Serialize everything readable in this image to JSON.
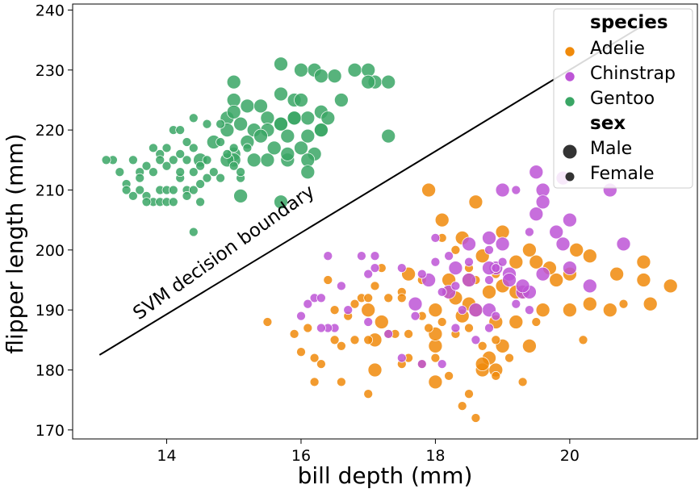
{
  "chart_data": {
    "type": "scatter",
    "title": "",
    "xlabel": "bill depth (mm)",
    "ylabel": "flipper length (mm)",
    "xlim": [
      12.6,
      21.9
    ],
    "ylim": [
      168.5,
      241
    ],
    "xticks": [
      14,
      16,
      18,
      20
    ],
    "yticks": [
      170,
      180,
      190,
      200,
      210,
      220,
      230,
      240
    ],
    "grid": false,
    "legend_position": "top-right",
    "legend": {
      "species_title": "species",
      "sex_title": "sex",
      "species": [
        {
          "name": "Adelie",
          "color": "#f08a0a"
        },
        {
          "name": "Chinstrap",
          "color": "#bd55d6"
        },
        {
          "name": "Gentoo",
          "color": "#3aa665"
        }
      ],
      "sex": [
        {
          "name": "Male"
        },
        {
          "name": "Female"
        }
      ]
    },
    "annotation": {
      "text": "SVM decision boundary"
    },
    "decision_boundary": {
      "x": [
        13.0,
        21.1
      ],
      "y": [
        182.5,
        237.5
      ]
    },
    "series": [
      {
        "name": "Adelie",
        "color": "#f08a0a",
        "male": [
          [
            17.9,
            210
          ],
          [
            18.1,
            205
          ],
          [
            18.6,
            208
          ],
          [
            19.0,
            203
          ],
          [
            18.4,
            202
          ],
          [
            18.7,
            199
          ],
          [
            19.2,
            198
          ],
          [
            19.5,
            198
          ],
          [
            19.7,
            197
          ],
          [
            19.4,
            200
          ],
          [
            20.1,
            200
          ],
          [
            20.3,
            199
          ],
          [
            20.7,
            196
          ],
          [
            21.1,
            195
          ],
          [
            21.1,
            198
          ],
          [
            21.5,
            194
          ],
          [
            21.2,
            191
          ],
          [
            20.6,
            190
          ],
          [
            20.3,
            191
          ],
          [
            20.0,
            190
          ],
          [
            19.6,
            190
          ],
          [
            19.3,
            193
          ],
          [
            19.0,
            194
          ],
          [
            18.8,
            193
          ],
          [
            18.5,
            191
          ],
          [
            18.2,
            193
          ],
          [
            18.0,
            190
          ],
          [
            18.4,
            189
          ],
          [
            18.9,
            188
          ],
          [
            19.2,
            188
          ],
          [
            19.4,
            184
          ],
          [
            19.0,
            184
          ],
          [
            18.8,
            182
          ],
          [
            18.7,
            180
          ],
          [
            18.9,
            180
          ],
          [
            18.7,
            181
          ],
          [
            18.0,
            184
          ],
          [
            18.0,
            186
          ],
          [
            18.0,
            178
          ],
          [
            17.1,
            185
          ],
          [
            17.1,
            180
          ],
          [
            17.0,
            190
          ],
          [
            17.2,
            188
          ],
          [
            17.6,
            196
          ],
          [
            18.2,
            195
          ],
          [
            18.5,
            195
          ],
          [
            18.3,
            192
          ],
          [
            18.6,
            190
          ],
          [
            19.2,
            193
          ],
          [
            19.8,
            195
          ],
          [
            20.0,
            196
          ]
        ],
        "female": [
          [
            18.1,
            202
          ],
          [
            18.3,
            200
          ],
          [
            18.5,
            197
          ],
          [
            18.6,
            195
          ],
          [
            18.9,
            196
          ],
          [
            17.8,
            195
          ],
          [
            17.5,
            193
          ],
          [
            17.3,
            192
          ],
          [
            17.1,
            194
          ],
          [
            17.2,
            197
          ],
          [
            16.9,
            192
          ],
          [
            16.8,
            191
          ],
          [
            16.5,
            190
          ],
          [
            16.7,
            189
          ],
          [
            17.3,
            186
          ],
          [
            17.0,
            185
          ],
          [
            16.8,
            185
          ],
          [
            16.5,
            185
          ],
          [
            16.6,
            184
          ],
          [
            16.3,
            181
          ],
          [
            16.2,
            178
          ],
          [
            16.6,
            178
          ],
          [
            17.0,
            176
          ],
          [
            16.0,
            183
          ],
          [
            15.9,
            186
          ],
          [
            16.1,
            187
          ],
          [
            15.5,
            188
          ],
          [
            17.5,
            181
          ],
          [
            17.8,
            181
          ],
          [
            18.0,
            182
          ],
          [
            18.2,
            179
          ],
          [
            18.4,
            174
          ],
          [
            18.6,
            172
          ],
          [
            18.5,
            176
          ],
          [
            18.7,
            184
          ],
          [
            18.9,
            185
          ],
          [
            19.1,
            182
          ],
          [
            19.3,
            178
          ],
          [
            17.5,
            192
          ],
          [
            17.8,
            189
          ],
          [
            17.9,
            187
          ],
          [
            17.6,
            186
          ],
          [
            17.4,
            186
          ],
          [
            18.1,
            188
          ],
          [
            18.3,
            186
          ],
          [
            18.5,
            187
          ],
          [
            17.0,
            192
          ],
          [
            16.4,
            195
          ],
          [
            16.2,
            182
          ],
          [
            17.6,
            182
          ],
          [
            18.9,
            179
          ],
          [
            19.5,
            188
          ],
          [
            20.2,
            185
          ],
          [
            20.8,
            191
          ]
        ]
      },
      {
        "name": "Chinstrap",
        "color": "#bd55d6",
        "male": [
          [
            19.5,
            213
          ],
          [
            19.6,
            210
          ],
          [
            19.9,
            212
          ],
          [
            20.0,
            205
          ],
          [
            19.8,
            203
          ],
          [
            19.9,
            201
          ],
          [
            20.0,
            197
          ],
          [
            20.8,
            201
          ],
          [
            20.6,
            210
          ],
          [
            19.5,
            206
          ],
          [
            19.0,
            210
          ],
          [
            18.5,
            201
          ],
          [
            18.8,
            202
          ],
          [
            19.0,
            201
          ],
          [
            18.9,
            197
          ],
          [
            18.8,
            197
          ],
          [
            19.1,
            196
          ],
          [
            19.3,
            193
          ],
          [
            19.6,
            196
          ],
          [
            19.4,
            193
          ],
          [
            18.8,
            190
          ],
          [
            18.6,
            190
          ],
          [
            18.5,
            195
          ],
          [
            18.2,
            193
          ],
          [
            17.7,
            191
          ],
          [
            18.3,
            197
          ],
          [
            17.9,
            195
          ],
          [
            19.3,
            194
          ],
          [
            19.6,
            208
          ],
          [
            19.1,
            195
          ],
          [
            20.3,
            194
          ]
        ],
        "female": [
          [
            19.2,
            210
          ],
          [
            19.4,
            203
          ],
          [
            18.9,
            197
          ],
          [
            18.8,
            200
          ],
          [
            18.5,
            198
          ],
          [
            18.3,
            194
          ],
          [
            18.1,
            193
          ],
          [
            18.0,
            198
          ],
          [
            17.8,
            196
          ],
          [
            17.5,
            197
          ],
          [
            17.1,
            197
          ],
          [
            16.9,
            199
          ],
          [
            16.4,
            199
          ],
          [
            16.6,
            194
          ],
          [
            16.2,
            192
          ],
          [
            16.1,
            191
          ],
          [
            16.0,
            189
          ],
          [
            16.5,
            187
          ],
          [
            16.4,
            187
          ],
          [
            16.7,
            190
          ],
          [
            17.0,
            196
          ],
          [
            17.3,
            186
          ],
          [
            17.5,
            182
          ],
          [
            17.8,
            181
          ],
          [
            18.1,
            181
          ],
          [
            18.3,
            187
          ],
          [
            18.6,
            185
          ],
          [
            18.8,
            187
          ],
          [
            19.2,
            191
          ],
          [
            18.8,
            195
          ],
          [
            18.2,
            199
          ],
          [
            18.0,
            202
          ],
          [
            17.7,
            189
          ],
          [
            16.3,
            187
          ],
          [
            18.9,
            189
          ],
          [
            19.4,
            190
          ],
          [
            18.4,
            190
          ],
          [
            17.0,
            188
          ],
          [
            16.3,
            192
          ],
          [
            19.0,
            198
          ],
          [
            17.1,
            199
          ]
        ]
      },
      {
        "name": "Gentoo",
        "color": "#3aa665",
        "male": [
          [
            15.7,
            231
          ],
          [
            16.0,
            230
          ],
          [
            16.2,
            230
          ],
          [
            16.3,
            229
          ],
          [
            16.5,
            229
          ],
          [
            16.8,
            230
          ],
          [
            17.0,
            230
          ],
          [
            17.1,
            228
          ],
          [
            17.3,
            228
          ],
          [
            17.0,
            228
          ],
          [
            15.0,
            228
          ],
          [
            15.0,
            225
          ],
          [
            15.2,
            224
          ],
          [
            15.4,
            224
          ],
          [
            15.5,
            222
          ],
          [
            15.7,
            226
          ],
          [
            15.9,
            225
          ],
          [
            16.0,
            225
          ],
          [
            16.3,
            223
          ],
          [
            16.4,
            222
          ],
          [
            16.6,
            225
          ],
          [
            16.1,
            222
          ],
          [
            15.9,
            222
          ],
          [
            15.7,
            221
          ],
          [
            15.5,
            220
          ],
          [
            15.3,
            220
          ],
          [
            15.1,
            221
          ],
          [
            14.9,
            222
          ],
          [
            14.9,
            220
          ],
          [
            15.2,
            218
          ],
          [
            15.4,
            219
          ],
          [
            15.8,
            219
          ],
          [
            16.0,
            217
          ],
          [
            16.2,
            216
          ],
          [
            16.3,
            220
          ],
          [
            16.3,
            220
          ],
          [
            16.1,
            215
          ],
          [
            16.1,
            213
          ],
          [
            15.8,
            215
          ],
          [
            15.8,
            216
          ],
          [
            15.6,
            217
          ],
          [
            15.3,
            215
          ],
          [
            15.0,
            216
          ],
          [
            15.0,
            215
          ],
          [
            15.0,
            223
          ],
          [
            14.5,
            215
          ],
          [
            14.9,
            215
          ],
          [
            15.1,
            209
          ],
          [
            15.7,
            208
          ],
          [
            17.3,
            219
          ],
          [
            16.1,
            219
          ],
          [
            15.9,
            222
          ],
          [
            14.7,
            218
          ],
          [
            15.7,
            221
          ],
          [
            15.5,
            215
          ]
        ],
        "female": [
          [
            14.1,
            220
          ],
          [
            14.2,
            220
          ],
          [
            14.3,
            218
          ],
          [
            14.4,
            217
          ],
          [
            14.2,
            216
          ],
          [
            14.0,
            217
          ],
          [
            13.9,
            216
          ],
          [
            13.8,
            217
          ],
          [
            13.7,
            214
          ],
          [
            13.5,
            215
          ],
          [
            13.2,
            215
          ],
          [
            13.4,
            211
          ],
          [
            13.6,
            213
          ],
          [
            13.6,
            210
          ],
          [
            13.7,
            209
          ],
          [
            13.9,
            210
          ],
          [
            14.0,
            210
          ],
          [
            14.1,
            210
          ],
          [
            14.3,
            210
          ],
          [
            14.4,
            210
          ],
          [
            14.5,
            211
          ],
          [
            14.6,
            212
          ],
          [
            14.7,
            213
          ],
          [
            14.8,
            212
          ],
          [
            14.5,
            214
          ],
          [
            14.4,
            213
          ],
          [
            14.6,
            215
          ],
          [
            14.9,
            216
          ],
          [
            15.0,
            214
          ],
          [
            15.1,
            212
          ],
          [
            14.8,
            218
          ],
          [
            14.6,
            221
          ],
          [
            14.4,
            222
          ],
          [
            14.8,
            221
          ],
          [
            15.2,
            217
          ],
          [
            13.3,
            213
          ],
          [
            13.8,
            213
          ],
          [
            13.8,
            208
          ],
          [
            13.9,
            208
          ],
          [
            14.0,
            208
          ],
          [
            14.1,
            208
          ],
          [
            13.7,
            208
          ],
          [
            13.5,
            209
          ],
          [
            13.6,
            212
          ],
          [
            14.3,
            209
          ],
          [
            14.5,
            208
          ],
          [
            14.4,
            203
          ],
          [
            14.2,
            212
          ],
          [
            14.1,
            215
          ],
          [
            14.3,
            215
          ],
          [
            13.9,
            215
          ],
          [
            13.1,
            215
          ],
          [
            14.0,
            214
          ],
          [
            14.2,
            213
          ],
          [
            13.4,
            210
          ],
          [
            15.0,
            217
          ],
          [
            15.1,
            213
          ]
        ]
      }
    ]
  }
}
